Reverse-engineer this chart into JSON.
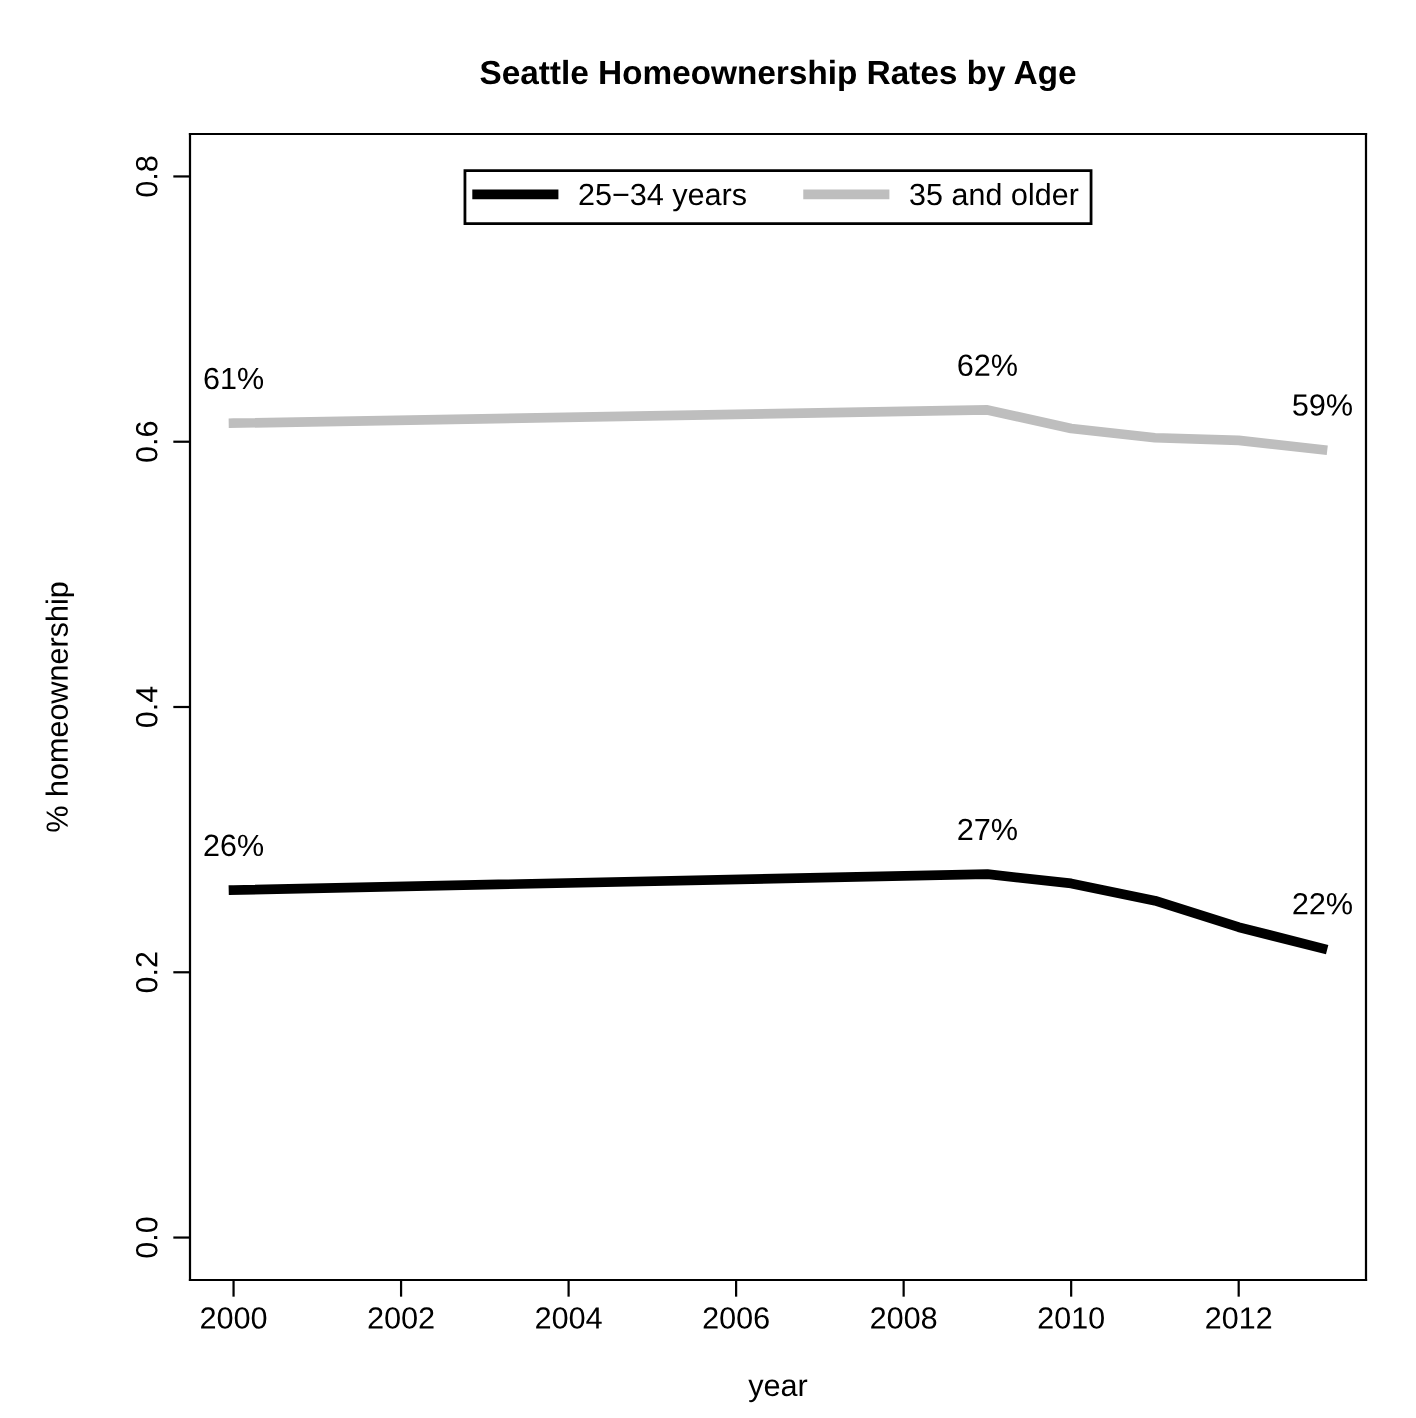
{
  "chart_data": {
    "type": "line",
    "title": "Seattle Homeownership Rates by Age",
    "xlabel": "year",
    "ylabel": "% homeownership",
    "x": [
      2000,
      2009,
      2010,
      2011,
      2012,
      2013
    ],
    "series": [
      {
        "name": "25−34 years",
        "color": "#000000",
        "values": [
          0.262,
          0.274,
          0.267,
          0.254,
          0.234,
          0.218
        ],
        "value_labels": [
          "26%",
          "27%",
          null,
          null,
          null,
          "22%"
        ]
      },
      {
        "name": "35 and older",
        "color": "#bebebe",
        "values": [
          0.614,
          0.624,
          0.61,
          0.603,
          0.601,
          0.594
        ],
        "value_labels": [
          "61%",
          "62%",
          null,
          null,
          null,
          "59%"
        ]
      }
    ],
    "xlim": [
      1999.48,
      2013.52
    ],
    "xticks": [
      2000,
      2002,
      2004,
      2006,
      2008,
      2010,
      2012
    ],
    "ylim": [
      -0.032,
      0.832
    ],
    "yticks": [
      {
        "value": 0,
        "label": "0.0"
      },
      {
        "value": 0.2,
        "label": "0.2"
      },
      {
        "value": 0.4,
        "label": "0.4"
      },
      {
        "value": 0.6,
        "label": "0.6"
      },
      {
        "value": 0.8,
        "label": "0.8"
      }
    ],
    "legend": "top",
    "grid": false,
    "marker": "none",
    "line_style": "solid"
  }
}
